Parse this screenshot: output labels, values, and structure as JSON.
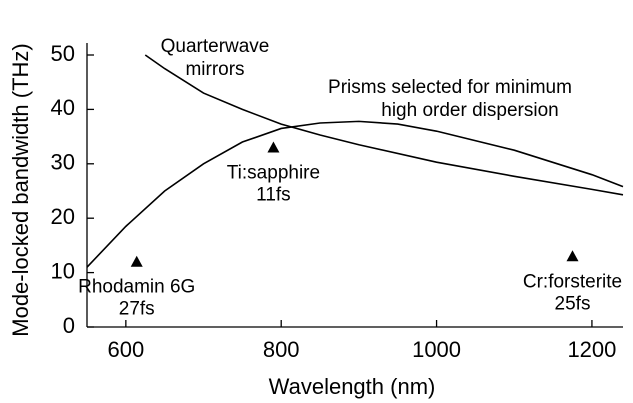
{
  "chart_data": {
    "type": "line",
    "x_label": "Wavelength (nm)",
    "y_label": "Mode-locked bandwidth (THz)",
    "xlim": [
      550,
      1240
    ],
    "xticks": [
      600,
      800,
      1000,
      1200
    ],
    "ylim": [
      0,
      50
    ],
    "yticks": [
      0,
      10,
      20,
      30,
      40,
      50
    ],
    "series": [
      {
        "color": "#000000",
        "x": [
          625,
          650,
          700,
          750,
          800,
          850,
          900,
          1000,
          1100,
          1200,
          1240
        ],
        "values": [
          50,
          47.5,
          43,
          40,
          37.3,
          35.3,
          33.5,
          30.3,
          27.7,
          25.3,
          24.3
        ]
      },
      {
        "color": "#000000",
        "x": [
          550,
          600,
          650,
          700,
          750,
          800,
          850,
          900,
          950,
          1000,
          1100,
          1200,
          1240
        ],
        "values": [
          11,
          18.5,
          25,
          30,
          34,
          36.5,
          37.5,
          37.8,
          37.3,
          36,
          32.5,
          28,
          25.8
        ]
      }
    ],
    "markers": {
      "color": "#000000",
      "x": [
        614,
        790,
        1175
      ],
      "values": [
        12,
        33,
        13
      ],
      "labels": [
        [
          "Rhodamin 6G",
          "27fs"
        ],
        [
          "Ti:sapphire",
          "11fs"
        ],
        [
          "Cr:forsterite",
          "25fs"
        ]
      ]
    },
    "annotations": [
      [
        "Quarterwave",
        "mirrors"
      ],
      [
        "Prisms selected for  minimum",
        "high order dispersion"
      ]
    ]
  }
}
